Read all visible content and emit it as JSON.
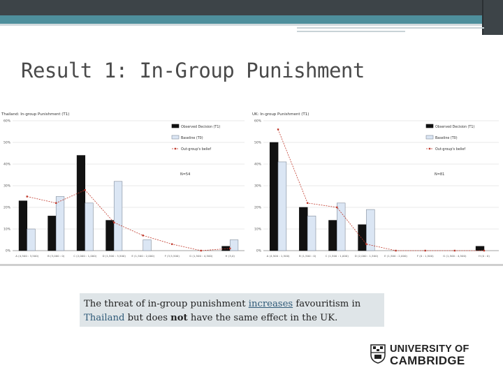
{
  "slide": {
    "title": "Result 1: In-Group Punishment",
    "caption": {
      "part1": "The threat of in-group punishment ",
      "part2": "increases",
      "part3": " favouritism in ",
      "part4": "Thailand",
      "part5": " but does ",
      "part6": "not",
      "part7": " have the same effect in the UK."
    },
    "logo": {
      "line1": "UNIVERSITY OF",
      "line2": "CAMBRIDGE",
      "icon": "cambridge-crest-icon"
    }
  },
  "colors": {
    "observed": "#111111",
    "baseline": "#dbe6f4",
    "baseline_stroke": "#7f8a99",
    "belief": "#c0392b",
    "accent": "#4e8f9c"
  },
  "chart_data": [
    {
      "type": "bar",
      "title": "Thailand: In-group Punishment (T1)",
      "categories": [
        "A (4,500 : 3,500)",
        "B (3,000 : 0)",
        "C (2,000 : 1,000)",
        "D (1,500 : 3,500)",
        "E (1,500 : 2,000)",
        "F (3,5,500)",
        "G (1,500 : 4,500)",
        "H (3,0)"
      ],
      "series": [
        {
          "name": "Observed Decision (T1)",
          "kind": "bar",
          "values": [
            23,
            16,
            44,
            14,
            0,
            0,
            0,
            2
          ]
        },
        {
          "name": "Baseline (T0)",
          "kind": "bar",
          "values": [
            10,
            25,
            22,
            32,
            5,
            0,
            0,
            5
          ]
        },
        {
          "name": "Out-group's belief",
          "kind": "line",
          "values": [
            25,
            22,
            28,
            13,
            7,
            3,
            0,
            1
          ]
        }
      ],
      "annotation": "N=54",
      "yticks": [
        "0%",
        "10%",
        "20%",
        "30%",
        "40%",
        "50%",
        "60%"
      ],
      "ylim": [
        0,
        60
      ],
      "legend": "top-right",
      "grid": true
    },
    {
      "type": "bar",
      "title": "UK: In-group Punishment (T1)",
      "categories": [
        "A (4,500 : 1,500)",
        "B (1,500 : 0)",
        "C (1,500 : 1,000)",
        "D (2,000 : 1,500)",
        "E (1,500 : 2,000)",
        "F (0 : 1,500)",
        "G (1,500 : 4,500)",
        "H (0 : 0)"
      ],
      "series": [
        {
          "name": "Observed Decision (T1)",
          "kind": "bar",
          "values": [
            50,
            20,
            14,
            12,
            0,
            0,
            0,
            2
          ]
        },
        {
          "name": "Baseline (T0)",
          "kind": "bar",
          "values": [
            41,
            16,
            22,
            19,
            0,
            0,
            0,
            0
          ]
        },
        {
          "name": "Out-group's belief",
          "kind": "line",
          "values": [
            56,
            22,
            20,
            3,
            0,
            0,
            0,
            0
          ]
        }
      ],
      "annotation": "N=81",
      "yticks": [
        "0%",
        "10%",
        "20%",
        "30%",
        "40%",
        "50%",
        "60%"
      ],
      "ylim": [
        0,
        60
      ],
      "legend": "top-right",
      "grid": true
    }
  ]
}
